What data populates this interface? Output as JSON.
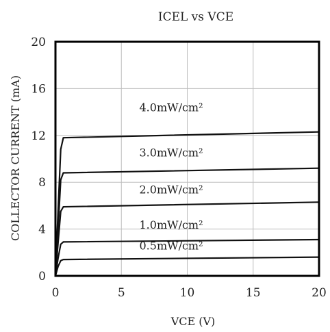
{
  "chart_data": {
    "type": "line",
    "title": "ICEL vs VCE",
    "xlabel": "VCE (V)",
    "ylabel": "COLLECTOR CURRENT (mA)",
    "xlim": [
      0,
      20
    ],
    "ylim": [
      0,
      20
    ],
    "xticks": [
      "0",
      "5",
      "10",
      "15",
      "20"
    ],
    "yticks": [
      "0",
      "4",
      "8",
      "12",
      "16",
      "20"
    ],
    "grid": true,
    "series": [
      {
        "name": "4.0mW/cm²",
        "x": [
          0,
          0.2,
          0.4,
          0.6,
          20
        ],
        "y": [
          0,
          5.5,
          10.8,
          11.8,
          12.3
        ]
      },
      {
        "name": "3.0mW/cm²",
        "x": [
          0,
          0.2,
          0.4,
          0.6,
          20
        ],
        "y": [
          0,
          4.0,
          8.2,
          8.8,
          9.2
        ]
      },
      {
        "name": "2.0mW/cm²",
        "x": [
          0,
          0.2,
          0.4,
          0.6,
          20
        ],
        "y": [
          0,
          2.8,
          5.5,
          5.9,
          6.3
        ]
      },
      {
        "name": "1.0mW/cm²",
        "x": [
          0,
          0.2,
          0.4,
          0.6,
          20
        ],
        "y": [
          0,
          1.5,
          2.7,
          2.9,
          3.1
        ]
      },
      {
        "name": "0.5mW/cm²",
        "x": [
          0,
          0.2,
          0.4,
          0.6,
          20
        ],
        "y": [
          0,
          0.8,
          1.3,
          1.4,
          1.6
        ]
      }
    ]
  }
}
